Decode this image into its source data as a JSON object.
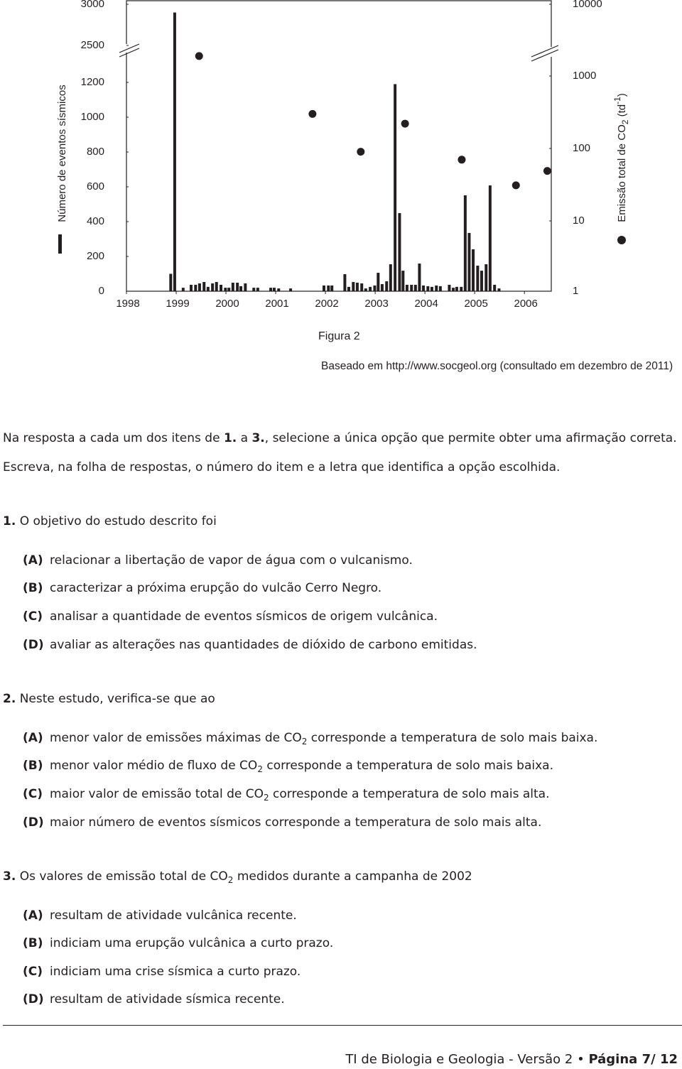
{
  "chart_data": {
    "type": "combo",
    "y_label": "Número de eventos sísmicos",
    "y2_label": {
      "text": "Emissão total de CO",
      "sub": "2",
      "mid": " (td",
      "sup": "-1",
      "end": ")"
    },
    "xlim": [
      1998,
      2006.54
    ],
    "xticks": [
      1998,
      1999,
      2000,
      2001,
      2002,
      2003,
      2004,
      2005,
      2006
    ],
    "ylim": [
      0,
      3000
    ],
    "yticks": [
      0,
      200,
      400,
      600,
      800,
      1000,
      1200,
      2500,
      3000
    ],
    "y2lim": [
      1,
      10000
    ],
    "y2ticks": [
      1,
      10,
      100,
      1000,
      10000
    ],
    "y2_log": true,
    "bars": {
      "color": "#231f20",
      "x": [
        1998.89,
        1998.97,
        1999.14,
        1999.3,
        1999.39,
        1999.47,
        1999.56,
        1999.64,
        1999.73,
        1999.81,
        1999.9,
        1999.99,
        2000.06,
        2000.14,
        2000.23,
        2000.3,
        2000.39,
        2000.56,
        2000.64,
        2000.9,
        2000.97,
        2001.06,
        2001.3,
        2001.97,
        2002.06,
        2002.13,
        2002.39,
        2002.47,
        2002.56,
        2002.64,
        2002.73,
        2002.81,
        2002.9,
        2002.99,
        2003.06,
        2003.14,
        2003.23,
        2003.31,
        2003.4,
        2003.49,
        2003.56,
        2003.64,
        2003.73,
        2003.81,
        2003.89,
        2003.97,
        2004.06,
        2004.14,
        2004.23,
        2004.31,
        2004.49,
        2004.57,
        2004.64,
        2004.73,
        2004.81,
        2004.89,
        2004.97,
        2005.06,
        2005.14,
        2005.23,
        2005.31,
        2005.4,
        2005.49
      ],
      "values": [
        100,
        2900,
        20,
        37,
        37,
        45,
        53,
        25,
        45,
        53,
        37,
        20,
        20,
        49,
        49,
        29,
        45,
        20,
        20,
        20,
        20,
        16,
        16,
        33,
        33,
        33,
        98,
        25,
        53,
        49,
        45,
        16,
        25,
        33,
        106,
        41,
        57,
        155,
        1190,
        449,
        118,
        37,
        37,
        37,
        159,
        33,
        29,
        25,
        33,
        29,
        37,
        20,
        25,
        25,
        551,
        335,
        241,
        147,
        118,
        155,
        608,
        37,
        16
      ]
    },
    "points": {
      "color": "#231f20",
      "axis": "y2",
      "x": [
        1999.46,
        2001.74,
        2002.71,
        2003.6,
        2004.74,
        2005.83,
        2006.46
      ],
      "values": [
        1900,
        300,
        90,
        220,
        70,
        31,
        49
      ]
    }
  },
  "figure": {
    "caption": "Figura 2",
    "source": "Baseado em http://www.socgeol.org (consultado em dezembro de 2011)"
  },
  "instructions": {
    "a": "Na resposta a cada um dos itens de ",
    "n1": "1.",
    "b": " a ",
    "n3": "3.",
    "c": ", selecione a única opção que permite obter uma afirmação correta.",
    "line2": "Escreva, na folha de respostas, o número do item e a letra que identifica a opção escolhida."
  },
  "questions": [
    {
      "number": "1.",
      "stem": "O objetivo do estudo descrito foi",
      "options": [
        {
          "letter": "(A)",
          "text": "relacionar a libertação de vapor de água com o vulcanismo."
        },
        {
          "letter": "(B)",
          "text": "caracterizar a próxima erupção do vulcão Cerro Negro."
        },
        {
          "letter": "(C)",
          "text": "analisar a quantidade de eventos sísmicos de origem vulcânica."
        },
        {
          "letter": "(D)",
          "text": "avaliar as alterações nas quantidades de dióxido de carbono emitidas."
        }
      ]
    },
    {
      "number": "2.",
      "stem": "Neste estudo, verifica-se que ao",
      "options": [
        {
          "letter": "(A)",
          "text": {
            "before": "menor valor de emissões máximas de CO",
            "sub": "2",
            "after": " corresponde a temperatura de solo mais baixa."
          }
        },
        {
          "letter": "(B)",
          "text": {
            "before": "menor valor médio de fluxo de CO",
            "sub": "2",
            "after": " corresponde a temperatura de solo mais baixa."
          }
        },
        {
          "letter": "(C)",
          "text": {
            "before": "maior valor de emissão total de CO",
            "sub": "2",
            "after": " corresponde a temperatura de solo mais alta."
          }
        },
        {
          "letter": "(D)",
          "text": "maior número de eventos sísmicos corresponde a temperatura de solo mais alta."
        }
      ]
    },
    {
      "number": "3.",
      "stem": {
        "before": "Os valores de emissão total de CO",
        "sub": "2",
        "after": " medidos durante a campanha de 2002"
      },
      "options": [
        {
          "letter": "(A)",
          "text": "resultam de atividade vulcânica recente."
        },
        {
          "letter": "(B)",
          "text": "indiciam uma erupção vulcânica a curto prazo."
        },
        {
          "letter": "(C)",
          "text": "indiciam uma crise sísmica a curto prazo."
        },
        {
          "letter": "(D)",
          "text": "resultam de atividade sísmica recente."
        }
      ]
    }
  ],
  "footer": {
    "left": "TI de Biologia e Geologia - Versão 2",
    "bullet": "•",
    "page": "Página 7/ 12"
  }
}
